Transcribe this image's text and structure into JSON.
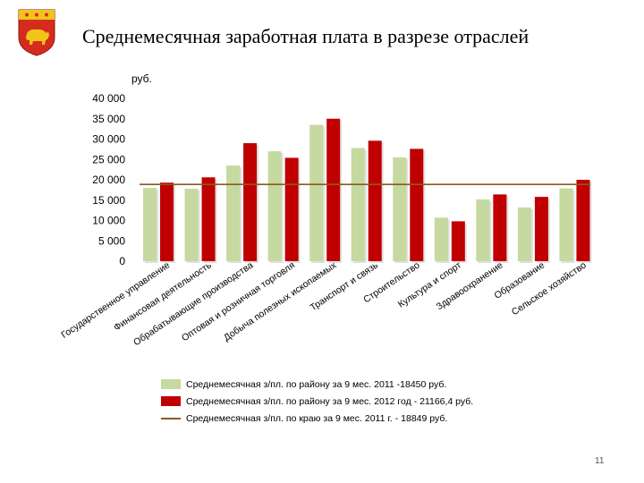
{
  "slide": {
    "title": "Среднемесячная заработная плата в разрезе отраслей",
    "page_number": "11"
  },
  "colors": {
    "series_2011": "#c5d9a0",
    "series_2012": "#c00000",
    "region_line": "#8b5a1e",
    "emblem_red": "#d52b1e",
    "emblem_gold": "#f0c419"
  },
  "emblem": {
    "icon": "coat-of-arms-icon"
  },
  "chart_data": {
    "type": "bar",
    "unit_label": "руб.",
    "ylim": [
      0,
      40000
    ],
    "yticks": [
      "0",
      "5 000",
      "10 000",
      "15 000",
      "20 000",
      "25 000",
      "30 000",
      "35 000",
      "40 000"
    ],
    "grid": false,
    "legend_position": "bottom",
    "categories": [
      "Государственное управление",
      "Финансовая деятельность",
      "Обрабатывающие производства",
      "Оптовая и розничная торговля",
      "Добыча полезных ископаемых",
      "Транспорт и связь",
      "Строительство",
      "Культура и спорт",
      "Здравоохранение",
      "Образование",
      "Сельское хозяйство"
    ],
    "series": [
      {
        "name": "Среднемесячная з/пл. по району за 9 мес. 2011 -18450 руб.",
        "values": [
          18000,
          17800,
          23500,
          27000,
          33500,
          27800,
          25500,
          10700,
          15200,
          13200,
          17900
        ]
      },
      {
        "name": "Среднемесячная з/пл. по району за 9 мес. 2012 год - 21166,4 руб.",
        "values": [
          19300,
          20600,
          29000,
          25400,
          35000,
          29600,
          27600,
          9800,
          16400,
          15800,
          20000
        ]
      }
    ],
    "reference_line": {
      "name": "Среднемесячная з/пл. по краю за 9 мес. 2011 г.  - 18849 руб.",
      "value": 18849
    }
  }
}
